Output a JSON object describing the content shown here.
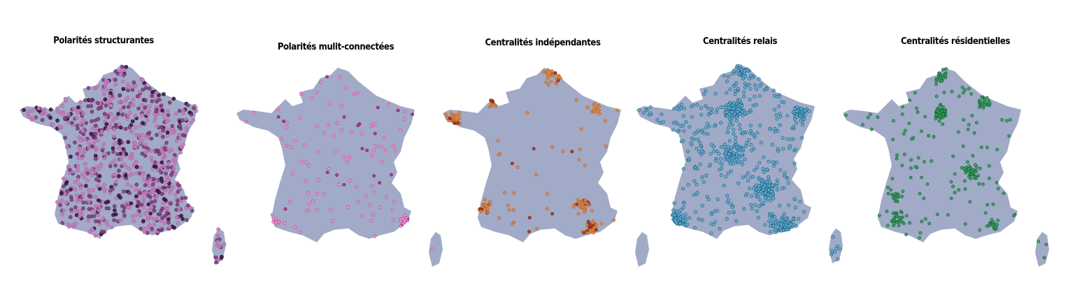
{
  "panels": [
    {
      "title": "Polarités structurantes"
    },
    {
      "title": "Polarités mulit-connectées"
    },
    {
      "title": "Centralités indépendantes"
    },
    {
      "title": "Centralités relais"
    },
    {
      "title": "Centralités résidentielles"
    }
  ]
}
